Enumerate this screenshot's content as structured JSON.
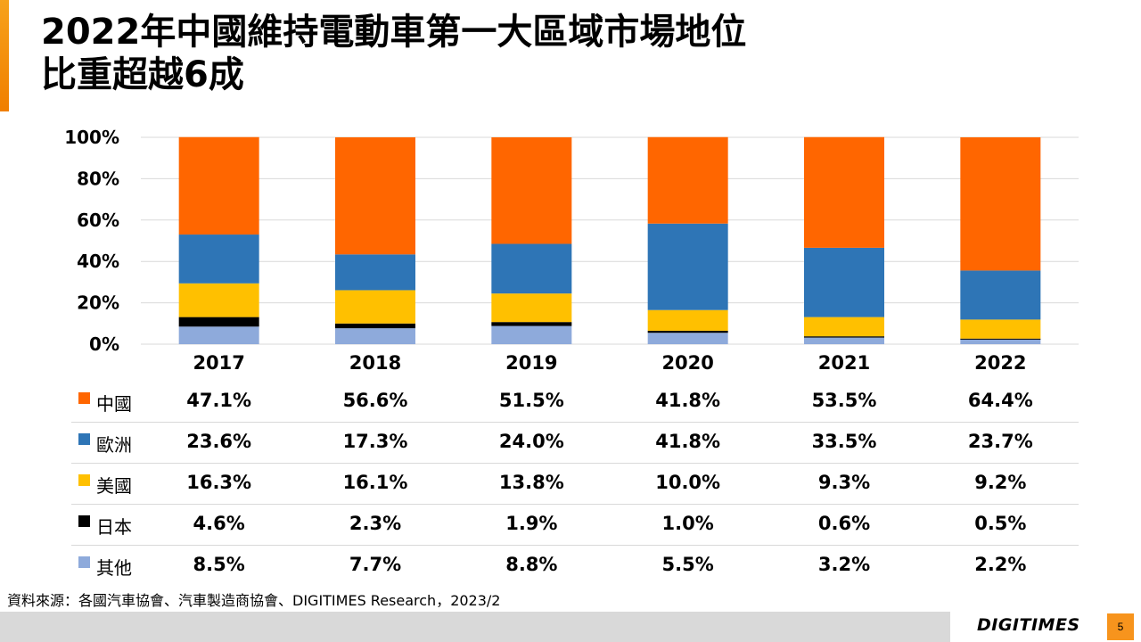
{
  "title": {
    "line1": "2022年中國維持電動車第一大區域市場地位",
    "line2": "比重超越6成"
  },
  "chart_data": {
    "type": "bar",
    "stacked": true,
    "normalized": true,
    "categories": [
      "2017",
      "2018",
      "2019",
      "2020",
      "2021",
      "2022"
    ],
    "y_ticks": [
      "0%",
      "20%",
      "40%",
      "60%",
      "80%",
      "100%"
    ],
    "ylim": [
      0,
      100
    ],
    "grid": true,
    "legend": "data-table-left",
    "series": [
      {
        "name": "其他",
        "color": "#8eaadb",
        "values": [
          8.5,
          7.7,
          8.8,
          5.5,
          3.2,
          2.2
        ],
        "labels": [
          "8.5%",
          "7.7%",
          "8.8%",
          "5.5%",
          "3.2%",
          "2.2%"
        ]
      },
      {
        "name": "日本",
        "color": "#000000",
        "values": [
          4.6,
          2.3,
          1.9,
          1.0,
          0.6,
          0.5
        ],
        "labels": [
          "4.6%",
          "2.3%",
          "1.9%",
          "1.0%",
          "0.6%",
          "0.5%"
        ]
      },
      {
        "name": "美國",
        "color": "#ffc000",
        "values": [
          16.3,
          16.1,
          13.8,
          10.0,
          9.3,
          9.2
        ],
        "labels": [
          "16.3%",
          "16.1%",
          "13.8%",
          "10.0%",
          "9.3%",
          "9.2%"
        ]
      },
      {
        "name": "歐洲",
        "color": "#2e75b6",
        "values": [
          23.6,
          17.3,
          24.0,
          41.8,
          33.5,
          23.7
        ],
        "labels": [
          "23.6%",
          "17.3%",
          "24.0%",
          "41.8%",
          "33.5%",
          "23.7%"
        ]
      },
      {
        "name": "中國",
        "color": "#ff6600",
        "values": [
          47.1,
          56.6,
          51.5,
          41.8,
          53.5,
          64.4
        ],
        "labels": [
          "47.1%",
          "56.6%",
          "51.5%",
          "41.8%",
          "53.5%",
          "64.4%"
        ]
      }
    ],
    "table_order": [
      "中國",
      "歐洲",
      "美國",
      "日本",
      "其他"
    ]
  },
  "source": "資料來源：各國汽車協會、汽車製造商協會、DIGITIMES Research，2023/2",
  "brand": "DIGITIMES",
  "page_number": "5",
  "colors": {
    "accent": "#f7941d",
    "footer_bar": "#d9d9d9",
    "gridline": "#d9d9d9"
  }
}
